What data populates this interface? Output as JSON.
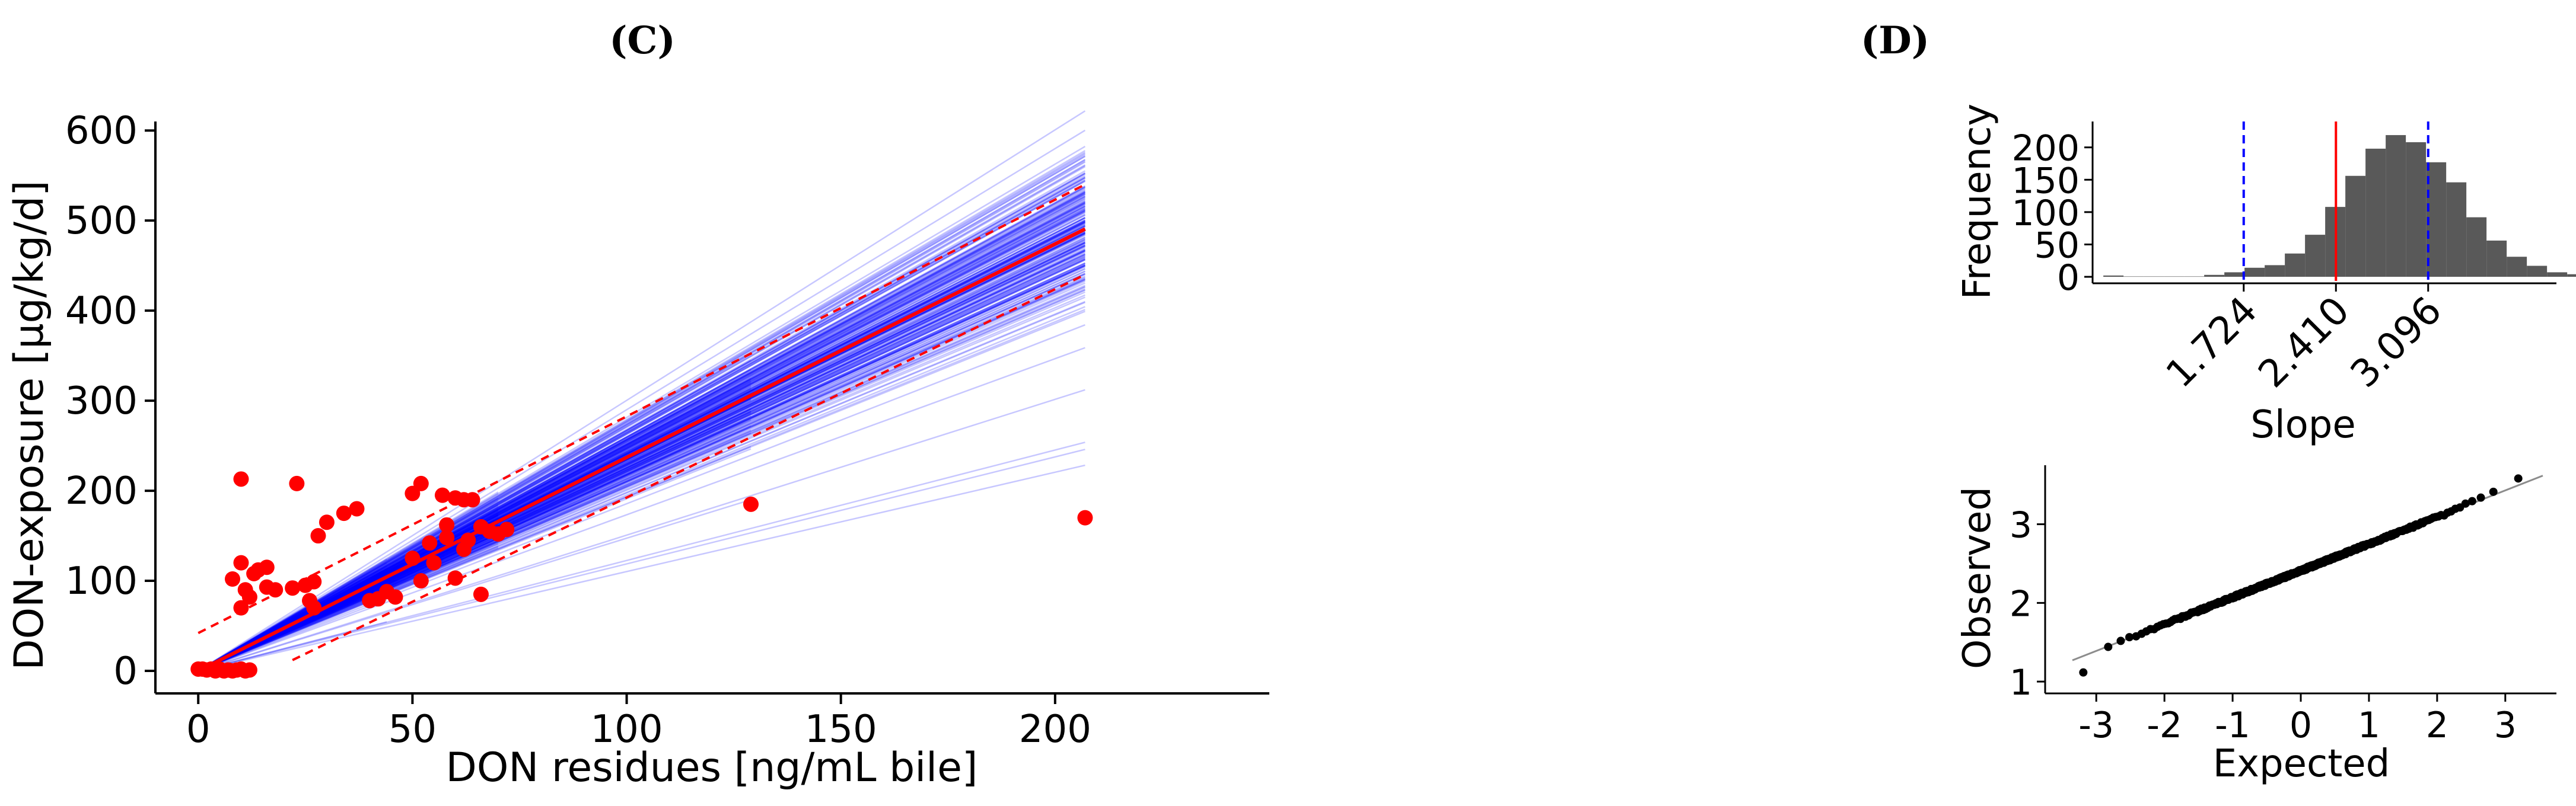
{
  "chart_data": [
    {
      "type": "scatter",
      "panel_label": "(C)",
      "xlabel": "DON residues [ng/mL bile]",
      "ylabel": "DON-exposure [µg/kg/d]",
      "xlim": [
        -10,
        250
      ],
      "ylim": [
        -25,
        610
      ],
      "xticks": [
        0,
        50,
        100,
        150,
        200
      ],
      "yticks": [
        0,
        100,
        200,
        300,
        400,
        500,
        600
      ],
      "grid": false,
      "points": [
        [
          0,
          2
        ],
        [
          1,
          2
        ],
        [
          2,
          1
        ],
        [
          3,
          2
        ],
        [
          4,
          0
        ],
        [
          5,
          2
        ],
        [
          6,
          0
        ],
        [
          7,
          1
        ],
        [
          8,
          0
        ],
        [
          9,
          1
        ],
        [
          10,
          2
        ],
        [
          11,
          0
        ],
        [
          12,
          1
        ],
        [
          10,
          213
        ],
        [
          23,
          208
        ],
        [
          52,
          208
        ],
        [
          50,
          197
        ],
        [
          57,
          195
        ],
        [
          60,
          192
        ],
        [
          62,
          190
        ],
        [
          64,
          190
        ],
        [
          37,
          180
        ],
        [
          34,
          175
        ],
        [
          30,
          165
        ],
        [
          28,
          150
        ],
        [
          66,
          160
        ],
        [
          68,
          155
        ],
        [
          70,
          152
        ],
        [
          72,
          157
        ],
        [
          10,
          120
        ],
        [
          14,
          112
        ],
        [
          16,
          115
        ],
        [
          13,
          108
        ],
        [
          8,
          102
        ],
        [
          16,
          93
        ],
        [
          18,
          90
        ],
        [
          11,
          90
        ],
        [
          12,
          82
        ],
        [
          10,
          70
        ],
        [
          25,
          95
        ],
        [
          27,
          99
        ],
        [
          22,
          92
        ],
        [
          26,
          78
        ],
        [
          27,
          70
        ],
        [
          44,
          88
        ],
        [
          46,
          82
        ],
        [
          42,
          80
        ],
        [
          40,
          78
        ],
        [
          52,
          100
        ],
        [
          60,
          103
        ],
        [
          54,
          142
        ],
        [
          58,
          148
        ],
        [
          63,
          145
        ],
        [
          62,
          135
        ],
        [
          55,
          120
        ],
        [
          50,
          125
        ],
        [
          58,
          162
        ],
        [
          66,
          85
        ],
        [
          129,
          185
        ],
        [
          207,
          170
        ]
      ],
      "fit_line": {
        "slope": 2.37,
        "intercept": 0,
        "x_range": [
          0,
          207
        ]
      },
      "ci_upper": {
        "x_range": [
          0,
          207
        ],
        "y_range": [
          42,
          540
        ]
      },
      "ci_lower": {
        "x_range": [
          22,
          207
        ],
        "y_range": [
          12,
          440
        ]
      },
      "bootstrap_lines": {
        "count": "many",
        "slope_range": [
          1.03,
          3.2
        ],
        "max_x_values": [
          44,
          70,
          129,
          207
        ],
        "color": "#0000ff"
      },
      "colors": {
        "points": "#ff0000",
        "fit": "#ff0000",
        "bootstrap": "#0000ff"
      }
    },
    {
      "type": "histogram",
      "panel_label": "(D)",
      "xlabel": "Slope",
      "ylabel": "Frequency",
      "xlim": [
        0.6,
        4.05
      ],
      "ylim": [
        -10,
        240
      ],
      "xtick_labels": [
        "1.724",
        "2.410",
        "3.096"
      ],
      "xtick_values": [
        1.724,
        2.41,
        3.096
      ],
      "yticks": [
        0,
        50,
        100,
        150,
        200
      ],
      "bin_width": 0.15,
      "bin_start": 0.68,
      "counts": [
        2,
        0,
        0,
        0,
        0,
        3,
        7,
        14,
        18,
        36,
        65,
        108,
        156,
        198,
        219,
        208,
        177,
        146,
        92,
        56,
        31,
        17,
        7,
        4,
        2,
        1
      ],
      "vlines": [
        {
          "x": 1.724,
          "style": "dashed",
          "color": "#0000ff"
        },
        {
          "x": 2.41,
          "style": "solid",
          "color": "#ff0000"
        },
        {
          "x": 3.096,
          "style": "dashed",
          "color": "#0000ff"
        }
      ],
      "bar_color": "#595959"
    },
    {
      "type": "scatter",
      "subtype": "qq",
      "xlabel": "Expected",
      "ylabel": "Observed",
      "xlim": [
        -3.75,
        3.75
      ],
      "ylim": [
        0.85,
        3.75
      ],
      "xticks": [
        -3,
        -2,
        -1,
        0,
        1,
        2,
        3
      ],
      "yticks": [
        1,
        2,
        3
      ],
      "reference_line": {
        "slope": 0.34,
        "intercept": 2.41
      },
      "point_color": "#000000"
    }
  ]
}
